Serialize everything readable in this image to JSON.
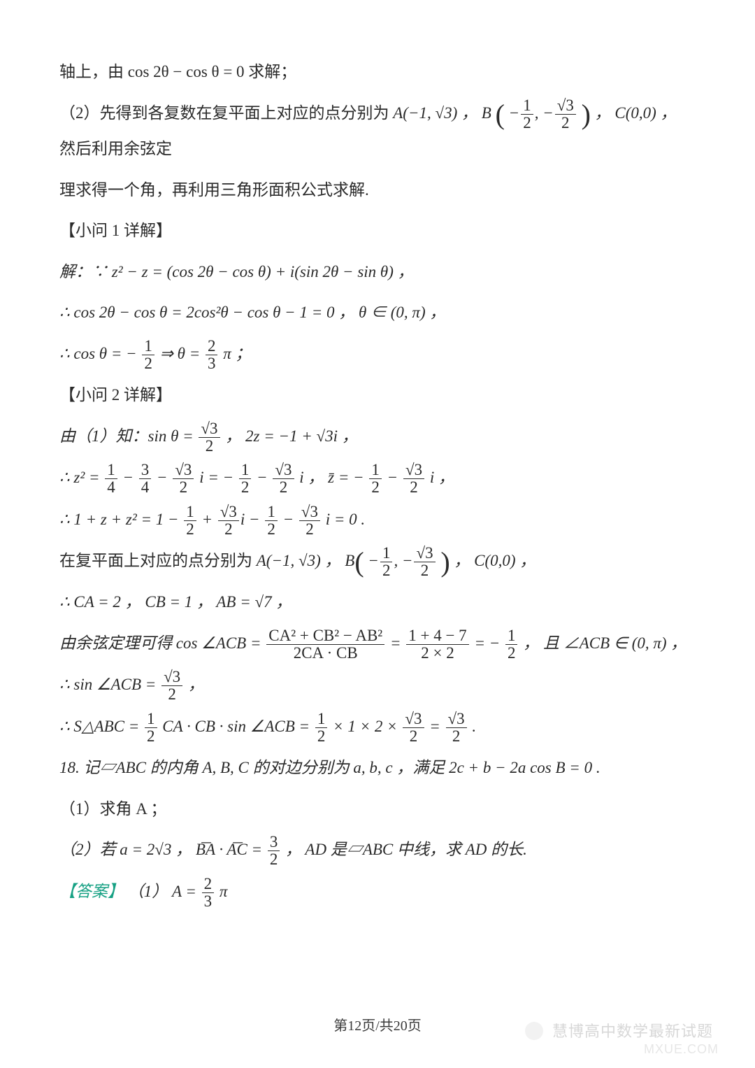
{
  "typography": {
    "font_family_body": "SimSun / Songti (serif)",
    "font_family_math": "Times New Roman italic",
    "body_fontsize_pt": 17,
    "line_height": 2.2,
    "text_color": "#2a2a2a",
    "answer_label_color": "#17a184",
    "background_color": "#ffffff",
    "watermark_color": "#b8b8b8"
  },
  "page": {
    "footer": "第12页/共20页",
    "watermark1": "慧博高中数学最新试题",
    "watermark2": "MXUE.COM"
  },
  "lines": {
    "l1": "轴上，由 cos 2θ − cos θ = 0 求解；",
    "l2_pre": "（2）先得到各复数在复平面上对应的点分别为 ",
    "l2_A": "A(−1, √3) ，",
    "l2_B_open": "B",
    "l2_B_x_num": "1",
    "l2_B_x_den": "2",
    "l2_B_y_num": "√3",
    "l2_B_y_den": "2",
    "l2_C": "C(0,0) ，",
    "l2_post": "然后利用余弦定",
    "l3": "理求得一个角，再利用三角形面积公式求解.",
    "l4": "【小问 1 详解】",
    "l5": "解：∵ z² − z = (cos 2θ − cos θ) + i(sin 2θ − sin θ) ，",
    "l6": "∴ cos 2θ − cos θ = 2cos²θ − cos θ − 1 = 0 ， θ ∈ (0, π) ，",
    "l7_pre": "∴ cos θ = −",
    "l7_a_num": "1",
    "l7_a_den": "2",
    "l7_mid": " ⇒ θ = ",
    "l7_b_num": "2",
    "l7_b_den": "3",
    "l7_post": "π ；",
    "l8": "【小问 2 详解】",
    "l9_pre": "由（1）知：sin θ = ",
    "l9_num": "√3",
    "l9_den": "2",
    "l9_mid": " ， 2z = −1 + √3i ，",
    "l10_pre": "∴ z² = ",
    "l10_a_num": "1",
    "l10_a_den": "4",
    "l10_b_num": "3",
    "l10_b_den": "4",
    "l10_c_num": "√3",
    "l10_c_den": "2",
    "l10_mid1": "i = −",
    "l10_d_num": "1",
    "l10_d_den": "2",
    "l10_e_num": "√3",
    "l10_e_den": "2",
    "l10_mid2": "i ，  z̄ = −",
    "l10_f_num": "1",
    "l10_f_den": "2",
    "l10_g_num": "√3",
    "l10_g_den": "2",
    "l10_post": "i ，",
    "l11_pre": "∴ 1 + z + z² = 1 − ",
    "l11_a_num": "1",
    "l11_a_den": "2",
    "l11_b_num": "√3",
    "l11_b_den": "2",
    "l11_c_num": "1",
    "l11_c_den": "2",
    "l11_d_num": "√3",
    "l11_d_den": "2",
    "l11_post": "i = 0 .",
    "l12_pre": "在复平面上对应的点分别为 ",
    "l12_A": "A(−1, √3) ，",
    "l12_B_x_num": "1",
    "l12_B_x_den": "2",
    "l12_B_y_num": "√3",
    "l12_B_y_den": "2",
    "l12_C": "C(0,0) ，",
    "l13": "∴ CA = 2 ， CB = 1 ， AB = √7 ，",
    "l14_pre": "由余弦定理可得 cos ∠ACB = ",
    "l14_n1": "CA² + CB² − AB²",
    "l14_d1": "2CA · CB",
    "l14_n2": "1 + 4 − 7",
    "l14_d2": "2 × 2",
    "l14_mid": " = −",
    "l14_r_num": "1",
    "l14_r_den": "2",
    "l14_post": " ， 且 ∠ACB ∈ (0, π) ，",
    "l15_pre": "∴ sin ∠ACB = ",
    "l15_num": "√3",
    "l15_den": "2",
    "l15_post": " ，",
    "l16_pre": "∴ S△ABC = ",
    "l16_a_num": "1",
    "l16_a_den": "2",
    "l16_mid1": "CA · CB · sin ∠ACB = ",
    "l16_b_num": "1",
    "l16_b_den": "2",
    "l16_mid2": " × 1 × 2 × ",
    "l16_c_num": "√3",
    "l16_c_den": "2",
    "l16_mid3": " = ",
    "l16_d_num": "√3",
    "l16_d_den": "2",
    "l16_post": " .",
    "l17": "18. 记▱ABC 的内角 A, B, C 的对边分别为 a, b, c ，满足 2c + b − 2a cos B = 0 .",
    "l18": "（1）求角 A ；",
    "l19_pre": "（2）若 a = 2√3 ， B͞A · A͞C = ",
    "l19_num": "3",
    "l19_den": "2",
    "l19_post": " ， AD 是▱ABC 中线，求 AD 的长.",
    "l20_label": "【答案】",
    "l20_pre": "（1） A = ",
    "l20_num": "2",
    "l20_den": "3",
    "l20_post": "π"
  }
}
